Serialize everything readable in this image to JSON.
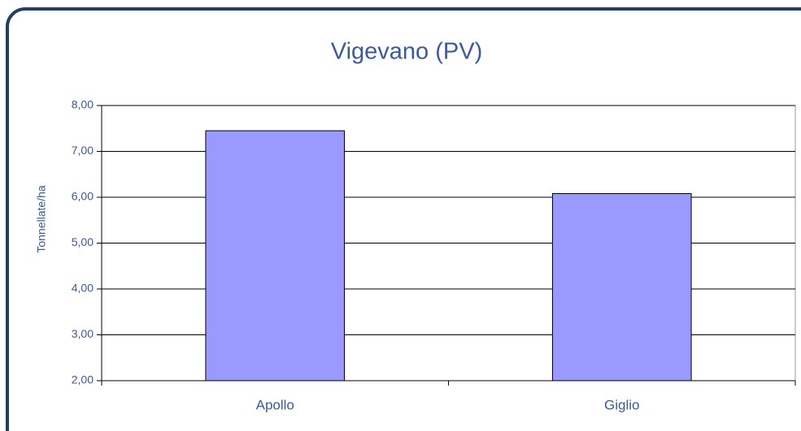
{
  "chart_data": {
    "type": "bar",
    "title": "Vigevano (PV)",
    "y_label": "Tonnellate/ha",
    "categories": [
      "Apollo",
      "Giglio"
    ],
    "values": [
      7.45,
      6.08
    ],
    "color": "#9999ff",
    "ylim": [
      2,
      8
    ],
    "yticks": [
      {
        "value": 2,
        "label": "2,00"
      },
      {
        "value": 3,
        "label": "3,00"
      },
      {
        "value": 4,
        "label": "4,00"
      },
      {
        "value": 5,
        "label": "5,00"
      },
      {
        "value": 6,
        "label": "6,00"
      },
      {
        "value": 7,
        "label": "7,00"
      },
      {
        "value": 8,
        "label": "8,00"
      }
    ],
    "grid": true
  }
}
